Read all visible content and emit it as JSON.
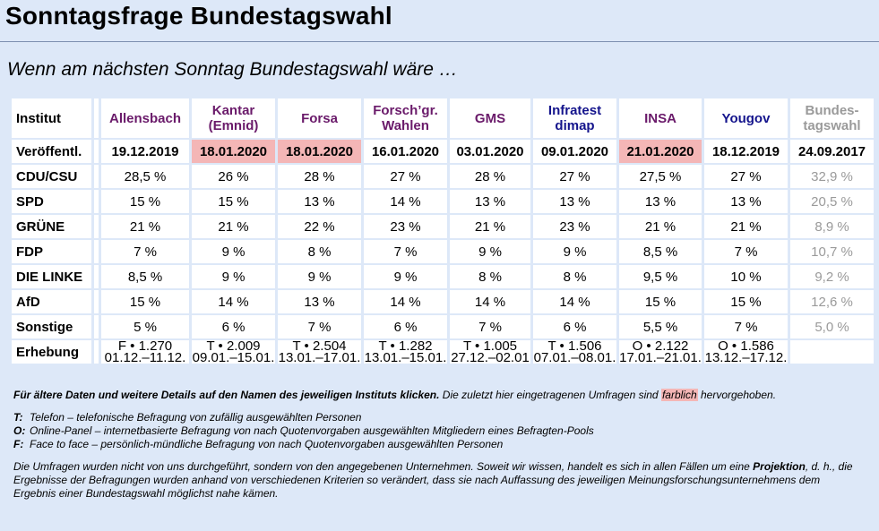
{
  "title": "Sonntagsfrage Bundestagswahl",
  "subtitle": "Wenn am nächsten Sonntag Bundestagswahl wäre …",
  "table": {
    "header_label": "Institut",
    "institutes": [
      {
        "name": "Allensbach"
      },
      {
        "name": "Kantar (Emnid)"
      },
      {
        "name": "Forsa"
      },
      {
        "name": "Forsch’gr. Wahlen"
      },
      {
        "name": "GMS"
      },
      {
        "name": "Infratest dimap"
      },
      {
        "name": "INSA"
      },
      {
        "name": "Yougov"
      },
      {
        "name": "Bundes-tagswahl"
      }
    ],
    "date_label": "Veröffentl.",
    "dates": [
      "19.12.2019",
      "18.01.2020",
      "18.01.2020",
      "16.01.2020",
      "03.01.2020",
      "09.01.2020",
      "21.01.2020",
      "18.12.2019",
      "24.09.2017"
    ],
    "rows": [
      {
        "party": "CDU/CSU",
        "values": [
          "28,5 %",
          "26 %",
          "28 %",
          "27 %",
          "28 %",
          "27 %",
          "27,5 %",
          "27 %",
          "32,9 %"
        ]
      },
      {
        "party": "SPD",
        "values": [
          "15 %",
          "15 %",
          "13 %",
          "14 %",
          "13 %",
          "13 %",
          "13 %",
          "13 %",
          "20,5 %"
        ]
      },
      {
        "party": "GRÜNE",
        "values": [
          "21 %",
          "21 %",
          "22 %",
          "23 %",
          "21 %",
          "23 %",
          "21 %",
          "21 %",
          "8,9 %"
        ]
      },
      {
        "party": "FDP",
        "values": [
          "7 %",
          "9 %",
          "8 %",
          "7 %",
          "9 %",
          "9 %",
          "8,5 %",
          "7 %",
          "10,7 %"
        ]
      },
      {
        "party": "DIE LINKE",
        "values": [
          "8,5 %",
          "9 %",
          "9 %",
          "9 %",
          "8 %",
          "8 %",
          "9,5 %",
          "10 %",
          "9,2 %"
        ]
      },
      {
        "party": "AfD",
        "values": [
          "15 %",
          "14 %",
          "13 %",
          "14 %",
          "14 %",
          "14 %",
          "15 %",
          "15 %",
          "12,6 %"
        ]
      },
      {
        "party": "Sonstige",
        "values": [
          "5 %",
          "6 %",
          "7 %",
          "6 %",
          "7 %",
          "6 %",
          "5,5 %",
          "7 %",
          "5,0 %"
        ]
      }
    ],
    "erhebung_label": "Erhebung",
    "erhebung": [
      {
        "line1": "F • 1.270",
        "line2": "01.12.–11.12."
      },
      {
        "line1": "T • 2.009",
        "line2": "09.01.–15.01."
      },
      {
        "line1": "T • 2.504",
        "line2": "13.01.–17.01."
      },
      {
        "line1": "T • 1.282",
        "line2": "13.01.–15.01."
      },
      {
        "line1": "T • 1.005",
        "line2": "27.12.–02.01"
      },
      {
        "line1": "T • 1.506",
        "line2": "07.01.–08.01."
      },
      {
        "line1": "O • 2.122",
        "line2": "17.01.–21.01."
      },
      {
        "line1": "O • 1.586",
        "line2": "13.12.–17.12."
      }
    ]
  },
  "notes": {
    "click_bold": "Für ältere Daten und weitere Details auf den Namen des jeweiligen Instituts klicken.",
    "click_rest_a": " Die zuletzt hier eingetragenen Umfragen sind ",
    "highlight_word": "farblich",
    "click_rest_b": " hervorgehoben.",
    "legend": [
      {
        "key": "T:",
        "text": "Telefon – telefonische Befragung von zufällig ausgewählten Personen"
      },
      {
        "key": "O:",
        "text": "Online-Panel – internetbasierte Befragung von nach Quotenvorgaben ausgewählten Mitgliedern eines Befragten-Pools"
      },
      {
        "key": "F:",
        "text": "Face to face – persönlich-mündliche Befragung von nach Quotenvorgaben ausgewählten Personen"
      }
    ],
    "disclaimer_a": "Die Umfragen wurden nicht von uns durchgeführt, sondern von den angegebenen Unternehmen. Soweit wir wissen, handelt es sich in allen Fällen um eine ",
    "disclaimer_bold": "Projektion",
    "disclaimer_b": ", d. h., die Ergebnisse der Befragungen wurden anhand von verschiedenen Kriterien so verändert, dass sie nach Auffassung des jeweiligen Meinungsforschungsunternehmens dem Ergebnis einer Bundestagswahl möglichst nahe kämen."
  },
  "colors": {
    "background": "#dde8f8",
    "highlight": "#f4b6b6",
    "link_purple": "#6a1a6a",
    "link_blue": "#14148c",
    "muted": "#9a9a9a"
  }
}
